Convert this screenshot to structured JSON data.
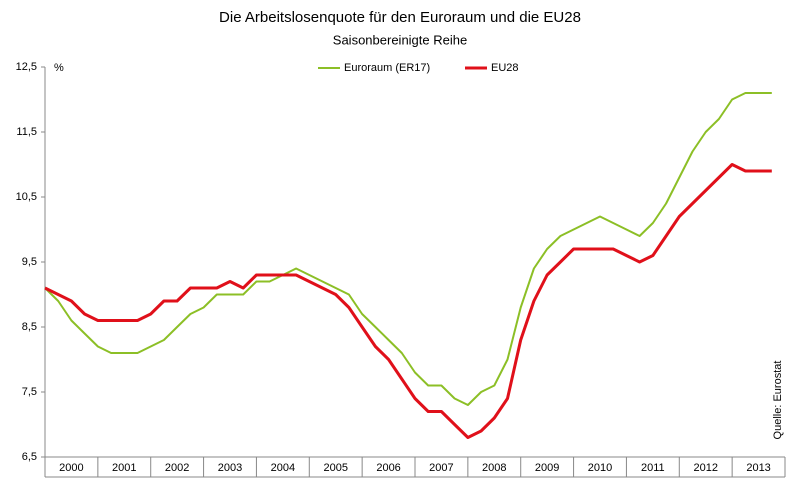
{
  "chart_data": {
    "type": "line",
    "title": "Die Arbeitslosenquote für den Euroraum und die EU28",
    "subtitle": "Saisonbereinigte Reihe",
    "y_unit": "%",
    "source": "Quelle: Eurostat",
    "categories": [
      "2000",
      "2001",
      "2002",
      "2003",
      "2004",
      "2005",
      "2006",
      "2007",
      "2008",
      "2009",
      "2010",
      "2011",
      "2012",
      "2013"
    ],
    "xlim": [
      2000,
      2014
    ],
    "xticks": [
      2000,
      2001,
      2002,
      2003,
      2004,
      2005,
      2006,
      2007,
      2008,
      2009,
      2010,
      2011,
      2012,
      2013,
      2014
    ],
    "ylim": [
      6.5,
      12.5
    ],
    "yticks": [
      {
        "value": 6.5,
        "label": "6,5"
      },
      {
        "value": 7.5,
        "label": "7,5"
      },
      {
        "value": 8.5,
        "label": "8,5"
      },
      {
        "value": 9.5,
        "label": "9,5"
      },
      {
        "value": 10.5,
        "label": "10,5"
      },
      {
        "value": 11.5,
        "label": "11,5"
      },
      {
        "value": 12.5,
        "label": "12,5"
      }
    ],
    "x": [
      2000,
      2000.25,
      2000.5,
      2000.75,
      2001,
      2001.25,
      2001.5,
      2001.75,
      2002,
      2002.25,
      2002.5,
      2002.75,
      2003,
      2003.25,
      2003.5,
      2003.75,
      2004,
      2004.25,
      2004.5,
      2004.75,
      2005,
      2005.25,
      2005.5,
      2005.75,
      2006,
      2006.25,
      2006.5,
      2006.75,
      2007,
      2007.25,
      2007.5,
      2007.75,
      2008,
      2008.25,
      2008.5,
      2008.75,
      2009,
      2009.25,
      2009.5,
      2009.75,
      2010,
      2010.25,
      2010.5,
      2010.75,
      2011,
      2011.25,
      2011.5,
      2011.75,
      2012,
      2012.25,
      2012.5,
      2012.75,
      2013,
      2013.25,
      2013.5,
      2013.75
    ],
    "legend": "top",
    "series": [
      {
        "name": "Euroraum (ER17)",
        "color": "#8cbf26",
        "values": [
          9.1,
          8.9,
          8.6,
          8.4,
          8.2,
          8.1,
          8.1,
          8.1,
          8.2,
          8.3,
          8.5,
          8.7,
          8.8,
          9.0,
          9.0,
          9.0,
          9.2,
          9.2,
          9.3,
          9.4,
          9.3,
          9.2,
          9.1,
          9.0,
          8.7,
          8.5,
          8.3,
          8.1,
          7.8,
          7.6,
          7.6,
          7.4,
          7.3,
          7.5,
          7.6,
          8.0,
          8.8,
          9.4,
          9.7,
          9.9,
          10.0,
          10.1,
          10.2,
          10.1,
          10.0,
          9.9,
          10.1,
          10.4,
          10.8,
          11.2,
          11.5,
          11.7,
          12.0,
          12.1,
          12.1,
          12.1
        ]
      },
      {
        "name": "EU28",
        "color": "#e0101a",
        "values": [
          9.1,
          9.0,
          8.9,
          8.7,
          8.6,
          8.6,
          8.6,
          8.6,
          8.7,
          8.9,
          8.9,
          9.1,
          9.1,
          9.1,
          9.2,
          9.1,
          9.3,
          9.3,
          9.3,
          9.3,
          9.2,
          9.1,
          9.0,
          8.8,
          8.5,
          8.2,
          8.0,
          7.7,
          7.4,
          7.2,
          7.2,
          7.0,
          6.8,
          6.9,
          7.1,
          7.4,
          8.3,
          8.9,
          9.3,
          9.5,
          9.7,
          9.7,
          9.7,
          9.7,
          9.6,
          9.5,
          9.6,
          9.9,
          10.2,
          10.4,
          10.6,
          10.8,
          11.0,
          10.9,
          10.9,
          10.9
        ]
      }
    ]
  }
}
